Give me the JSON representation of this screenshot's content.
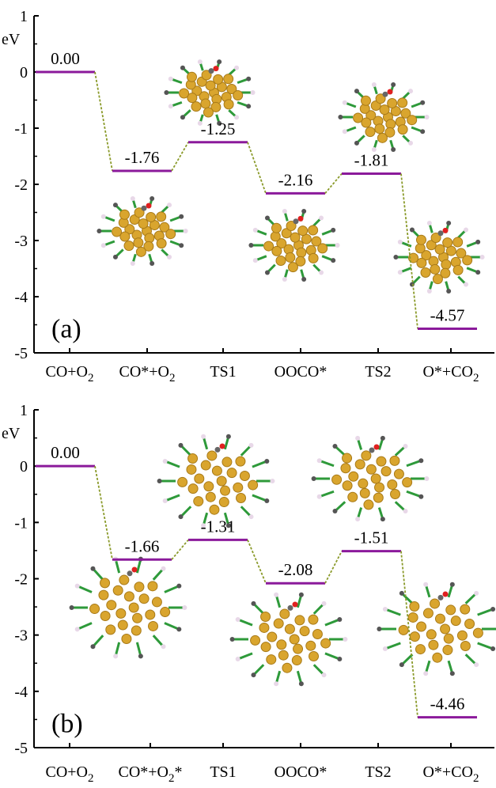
{
  "chart_data": [
    {
      "type": "line",
      "panel_label": "(a)",
      "ylabel": "eV",
      "ylim": [
        -5,
        1
      ],
      "yticks": [
        1,
        0,
        -1,
        -2,
        -3,
        -4,
        -5
      ],
      "categories": [
        {
          "main": "CO+O",
          "sub": "2",
          "tail": ""
        },
        {
          "main": "CO*+O",
          "sub": "2",
          "tail": ""
        },
        {
          "main": "TS1",
          "sub": "",
          "tail": ""
        },
        {
          "main": "OOCO*",
          "sub": "",
          "tail": ""
        },
        {
          "main": "TS2",
          "sub": "",
          "tail": ""
        },
        {
          "main": "O*+CO",
          "sub": "2",
          "tail": ""
        }
      ],
      "values": [
        0.0,
        -1.76,
        -1.25,
        -2.16,
        -1.81,
        -4.57
      ],
      "value_labels": [
        "0.00",
        "-1.76",
        "-1.25",
        "-2.16",
        "-1.81",
        "-4.57"
      ],
      "colors": {
        "level": "#8b1a9b",
        "connector": "#8a9a2a"
      },
      "grid": false,
      "structure_images": 5
    },
    {
      "type": "line",
      "panel_label": "(b)",
      "ylabel": "eV",
      "ylim": [
        -5,
        1
      ],
      "yticks": [
        1,
        0,
        -1,
        -2,
        -3,
        -4,
        -5
      ],
      "categories": [
        {
          "main": "CO+O",
          "sub": "2",
          "tail": ""
        },
        {
          "main": "CO*+O",
          "sub": "2",
          "tail": "*"
        },
        {
          "main": "TS1",
          "sub": "",
          "tail": ""
        },
        {
          "main": "OOCO*",
          "sub": "",
          "tail": ""
        },
        {
          "main": "TS2",
          "sub": "",
          "tail": ""
        },
        {
          "main": "O*+CO",
          "sub": "2",
          "tail": ""
        }
      ],
      "values": [
        0.0,
        -1.66,
        -1.31,
        -2.08,
        -1.51,
        -4.46
      ],
      "value_labels": [
        "0.00",
        "-1.66",
        "-1.31",
        "-2.08",
        "-1.51",
        "-4.46"
      ],
      "colors": {
        "level": "#8b1a9b",
        "connector": "#8a9a2a"
      },
      "grid": false,
      "structure_images": 5
    }
  ]
}
